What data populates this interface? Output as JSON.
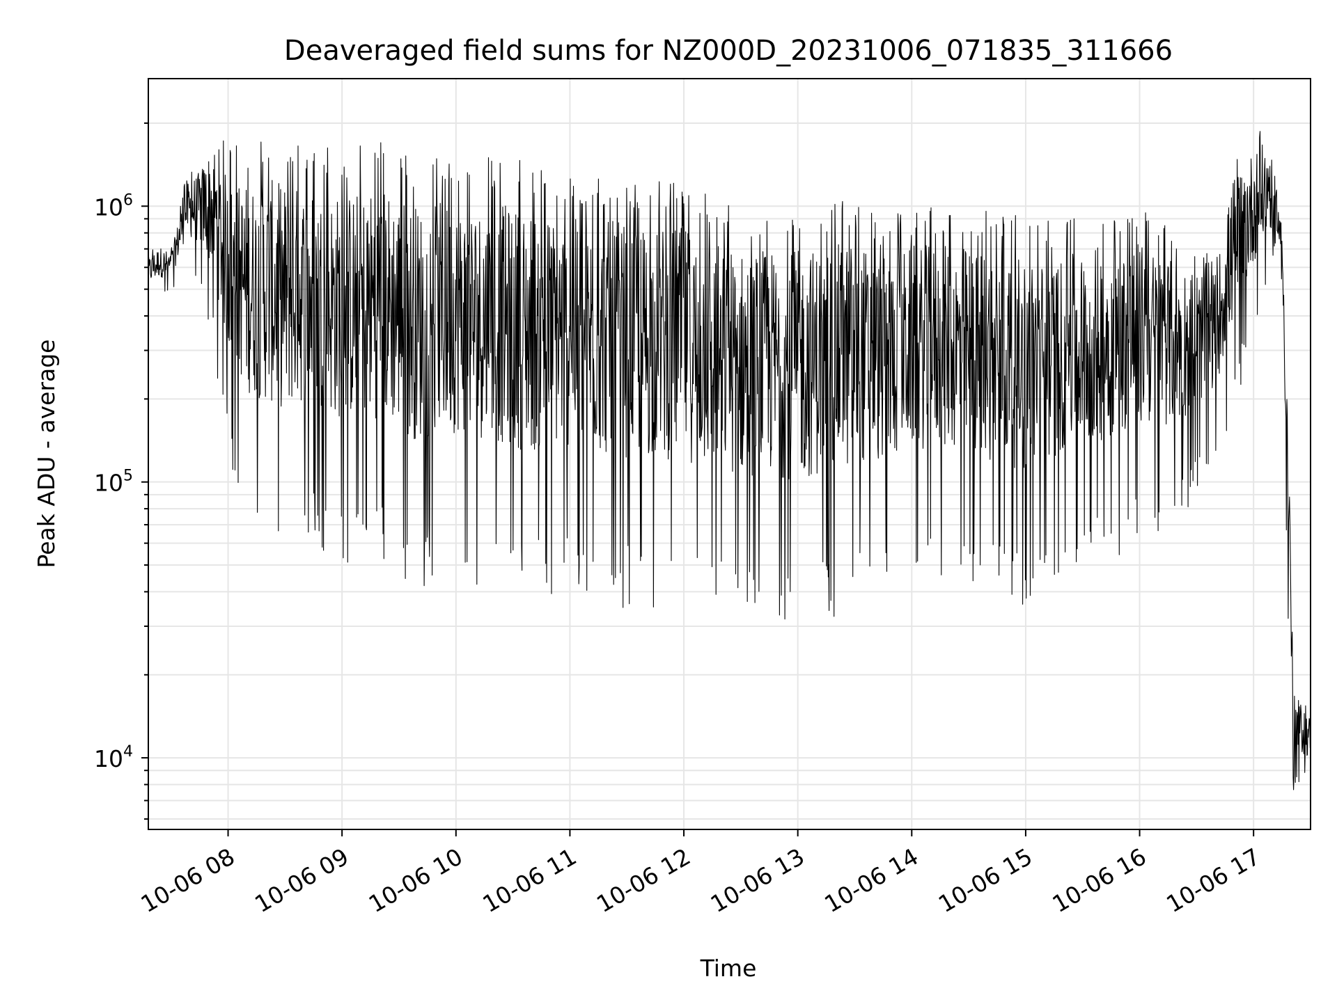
{
  "chart_data": {
    "type": "line",
    "title": "Deaveraged field sums for NZ000D_20231006_071835_311666",
    "xlabel": "Time",
    "ylabel": "Peak ADU - average",
    "yscale": "log",
    "ylim": [
      5500,
      2900000
    ],
    "xlim": [
      "2023-10-06 07:18",
      "2023-10-06 17:30"
    ],
    "grid": true,
    "line_color": "#000000",
    "grid_color": "#e6e6e6",
    "x_ticks": [
      "10-06 08",
      "10-06 09",
      "10-06 10",
      "10-06 11",
      "10-06 12",
      "10-06 13",
      "10-06 14",
      "10-06 15",
      "10-06 16",
      "10-06 17"
    ],
    "y_ticks": [
      {
        "base": "10",
        "exp": "4",
        "value": 10000
      },
      {
        "base": "10",
        "exp": "5",
        "value": 100000
      },
      {
        "base": "10",
        "exp": "6",
        "value": 1000000
      }
    ],
    "series": [
      {
        "style": "dense noisy trace (envelope: upper and lower extent)",
        "x": [
          "07:18",
          "07:24",
          "07:30",
          "07:38",
          "07:45",
          "07:52",
          "08:00",
          "08:10",
          "08:20",
          "08:30",
          "08:40",
          "09:00",
          "09:20",
          "09:40",
          "10:00",
          "10:20",
          "10:40",
          "11:00",
          "11:20",
          "11:40",
          "12:00",
          "12:15",
          "12:30",
          "12:45",
          "13:00",
          "13:15",
          "13:30",
          "13:45",
          "14:00",
          "14:20",
          "14:40",
          "15:00",
          "15:20",
          "15:40",
          "16:00",
          "16:20",
          "16:40",
          "16:50",
          "17:00",
          "17:08",
          "17:12",
          "17:15",
          "17:18",
          "17:21",
          "17:25",
          "17:30"
        ],
        "upper": [
          680000,
          750000,
          700000,
          1300000,
          1500000,
          2100000,
          1650000,
          1700000,
          1800000,
          1750000,
          1700000,
          1600000,
          1750000,
          1500000,
          1500000,
          1500000,
          1450000,
          1300000,
          1300000,
          1250000,
          1250000,
          1100000,
          1000000,
          1000000,
          1000000,
          1050000,
          1100000,
          900000,
          1000000,
          1000000,
          1000000,
          900000,
          900000,
          1000000,
          1000000,
          800000,
          700000,
          1700000,
          1900000,
          2000000,
          1200000,
          900000,
          300000,
          19000,
          17000,
          15000
        ],
        "lower": [
          450000,
          470000,
          480000,
          600000,
          500000,
          300000,
          120000,
          70000,
          60000,
          55000,
          60000,
          50000,
          50000,
          40000,
          45000,
          40000,
          35000,
          40000,
          35000,
          35000,
          35000,
          32000,
          32000,
          32000,
          30000,
          32000,
          33000,
          40000,
          45000,
          45000,
          40000,
          35000,
          45000,
          50000,
          60000,
          70000,
          120000,
          180000,
          350000,
          500000,
          700000,
          500000,
          30000,
          7500,
          8000,
          8000
        ]
      }
    ]
  }
}
